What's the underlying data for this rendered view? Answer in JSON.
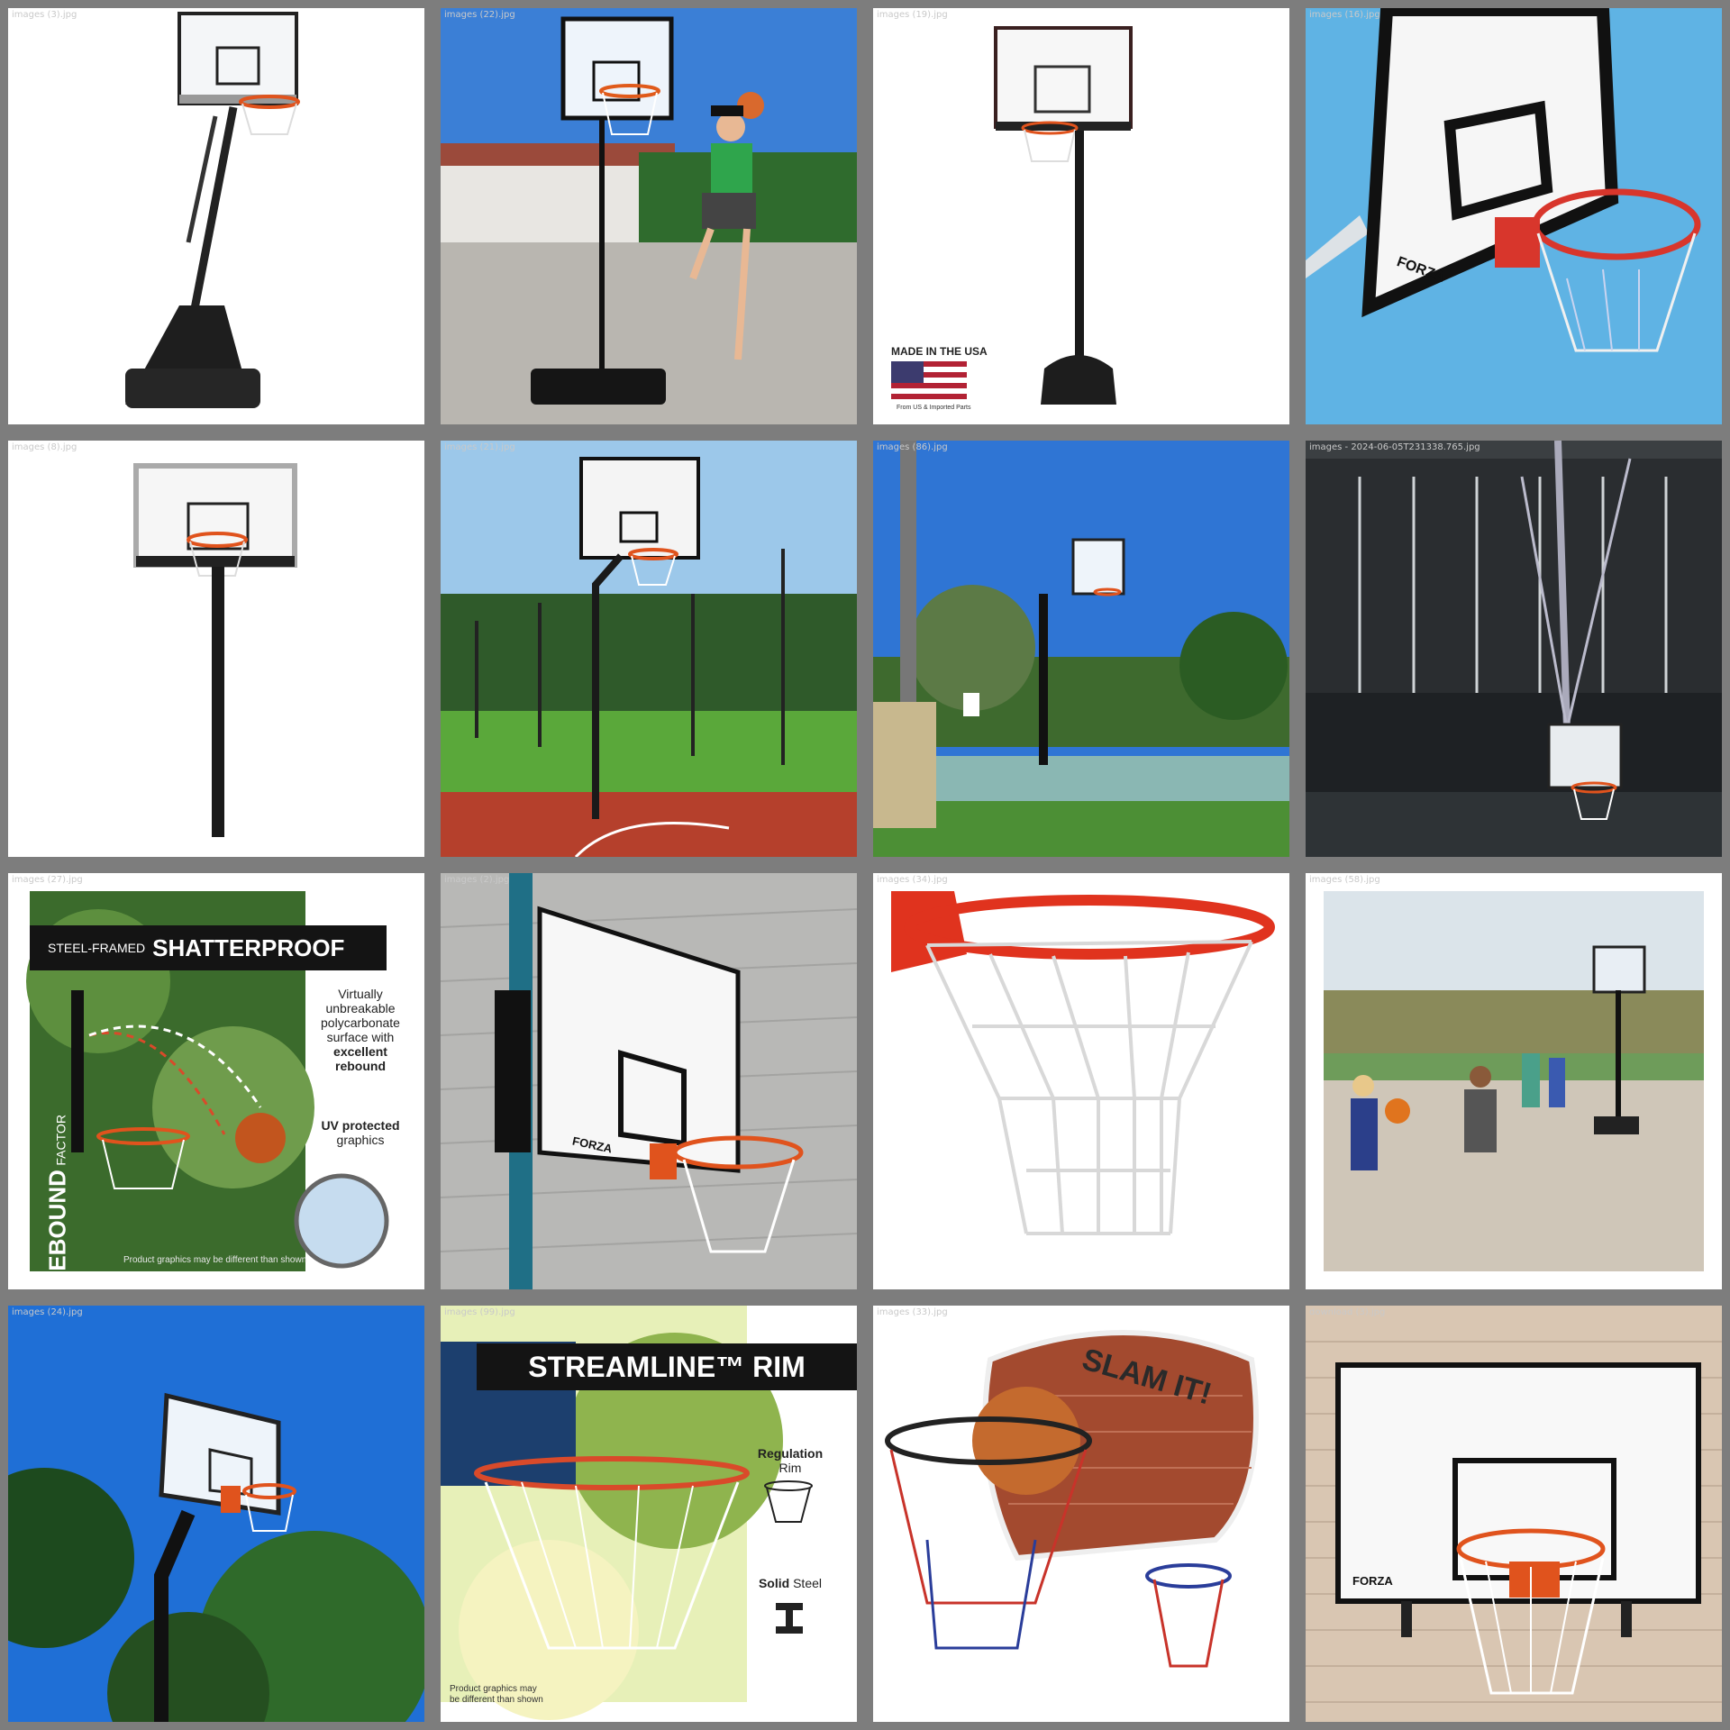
{
  "tiles": [
    {
      "filename": "images (3).jpg"
    },
    {
      "filename": "images (22).jpg"
    },
    {
      "filename": "images (19).jpg",
      "badge_title": "MADE IN THE USA",
      "badge_sub": "From US & Imported Parts"
    },
    {
      "filename": "images (16).jpg",
      "brand": "FORZA"
    },
    {
      "filename": "images (8).jpg"
    },
    {
      "filename": "images (21).jpg"
    },
    {
      "filename": "images (86).jpg"
    },
    {
      "filename": "images - 2024-06-05T231338.765.jpg"
    },
    {
      "filename": "images (27).jpg",
      "banner_prefix": "STEEL-FRAMED",
      "banner_main": "SHATTERPROOF",
      "vertical_main": "REBOUND",
      "vertical_suffix": "FACTOR",
      "note_line1": "Virtually",
      "note_line2": "unbreakable",
      "note_line3": "polycarbonate",
      "note_line4": "surface with",
      "note_line5": "excellent",
      "note_line6": "rebound",
      "uv_line1": "UV protected",
      "uv_line2": "graphics",
      "disclaimer": "Product graphics may be different than shown"
    },
    {
      "filename": "images (2).jpg",
      "brand": "FORZA"
    },
    {
      "filename": "images (34).jpg"
    },
    {
      "filename": "images (58).jpg"
    },
    {
      "filename": "images (24).jpg"
    },
    {
      "filename": "images (99).jpg",
      "banner": "STREAMLINE™ RIM",
      "reg_line1": "Regulation",
      "reg_line2": "Rim",
      "steel_bold": "Solid",
      "steel_rest": "Steel",
      "disclaimer1": "Product graphics may",
      "disclaimer2": "be different than shown"
    },
    {
      "filename": "images (33).jpg",
      "graffiti": "SLAM IT!"
    },
    {
      "filename": "download (3).jpg",
      "brand": "FORZA"
    }
  ]
}
